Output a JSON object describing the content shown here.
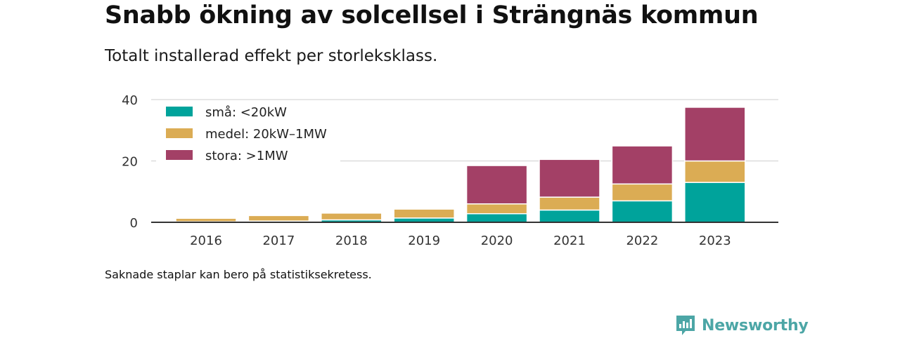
{
  "header": {
    "title": "Snabb ökning av solcellsel i Strängnäs kommun",
    "subtitle": "Totalt installerad effekt per storleksklass."
  },
  "footer": {
    "note": "Saknade staplar kan bero på statistiksekretess.",
    "brand": "Newsworthy"
  },
  "colors": {
    "sma": "#00a39b",
    "medel": "#dbac54",
    "stora": "#a34066",
    "grid": "#dddddd",
    "axis": "#333333",
    "brand": "#4ca6a6"
  },
  "chart_data": {
    "type": "bar",
    "stacked": true,
    "categories": [
      "2016",
      "2017",
      "2018",
      "2019",
      "2020",
      "2021",
      "2022",
      "2023"
    ],
    "series": [
      {
        "name": "små: <20kW",
        "color": "#00a39b",
        "values": [
          0.2,
          0.4,
          0.8,
          1.4,
          2.8,
          4.0,
          7.0,
          13.0
        ]
      },
      {
        "name": "medel: 20kW–1MW",
        "color": "#dbac54",
        "values": [
          1.1,
          1.8,
          2.2,
          2.9,
          3.2,
          4.2,
          5.5,
          7.0
        ]
      },
      {
        "name": "stora: >1MW",
        "color": "#a34066",
        "values": [
          0.0,
          0.0,
          0.0,
          0.0,
          12.5,
          12.3,
          12.4,
          17.5
        ]
      }
    ],
    "yticks": [
      0,
      20,
      40
    ],
    "ylim": [
      0,
      40
    ],
    "grid": true,
    "legend_position": "top-left",
    "xlabel": "",
    "ylabel": ""
  }
}
